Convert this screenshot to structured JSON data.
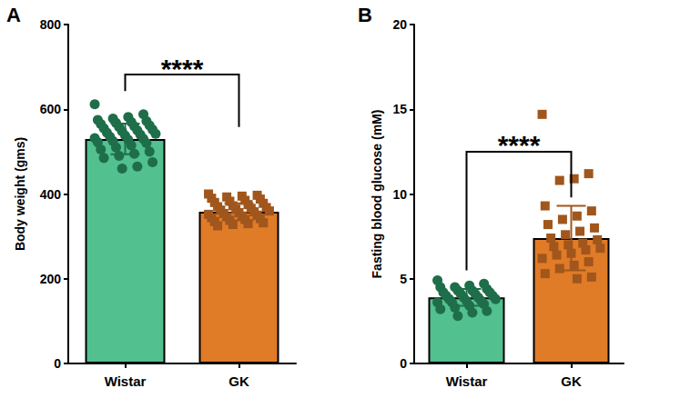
{
  "chart_data": [
    {
      "type": "bar",
      "title": "A",
      "categories": [
        "Wistar",
        "GK"
      ],
      "values": [
        530,
        358
      ],
      "errors": [
        36,
        20
      ],
      "colors": [
        "#52c08f",
        "#e07b27"
      ],
      "ylabel": "Body weight (gms)",
      "ylim": [
        0,
        800
      ],
      "yticks": [
        0,
        200,
        400,
        600,
        800
      ],
      "grid": false,
      "points": [
        {
          "category": "Wistar",
          "color": "#1f6e4a",
          "marker": "circle",
          "values": [
            612,
            588,
            582,
            578,
            575,
            572,
            570,
            568,
            565,
            562,
            560,
            558,
            555,
            552,
            550,
            548,
            545,
            542,
            540,
            538,
            535,
            532,
            530,
            528,
            525,
            522,
            520,
            515,
            510,
            505,
            500,
            495,
            490,
            485,
            475,
            465,
            460
          ]
        },
        {
          "category": "GK",
          "color": "#a0561c",
          "marker": "square",
          "values": [
            400,
            397,
            395,
            393,
            390,
            388,
            385,
            383,
            380,
            378,
            375,
            372,
            370,
            368,
            366,
            364,
            362,
            360,
            358,
            356,
            354,
            352,
            350,
            348,
            346,
            344,
            342,
            340,
            338,
            335,
            332,
            330,
            328,
            325
          ]
        }
      ],
      "annotations": [
        {
          "text": "****",
          "between": [
            "Wistar",
            "GK"
          ],
          "y": 682,
          "left_end": 643,
          "right_end": 558
        }
      ]
    },
    {
      "type": "bar",
      "title": "B",
      "categories": [
        "Wistar",
        "GK"
      ],
      "values": [
        3.9,
        7.4
      ],
      "errors": [
        0.5,
        1.9
      ],
      "colors": [
        "#52c08f",
        "#e07b27"
      ],
      "ylabel": "Fasting blood glucose (mM)",
      "ylim": [
        0,
        20
      ],
      "yticks": [
        0,
        5,
        10,
        15,
        20
      ],
      "grid": false,
      "points": [
        {
          "category": "Wistar",
          "color": "#1f6e4a",
          "marker": "circle",
          "values": [
            4.9,
            4.7,
            4.6,
            4.5,
            4.5,
            4.4,
            4.3,
            4.3,
            4.2,
            4.2,
            4.1,
            4.1,
            4.0,
            4.0,
            3.9,
            3.9,
            3.8,
            3.8,
            3.7,
            3.7,
            3.6,
            3.6,
            3.5,
            3.4,
            3.3,
            3.2,
            3.1,
            3.0,
            2.8
          ]
        },
        {
          "category": "GK",
          "color": "#a0561c",
          "marker": "square",
          "values": [
            14.7,
            11.2,
            10.9,
            10.8,
            9.3,
            9.0,
            8.7,
            8.5,
            8.2,
            8.0,
            7.8,
            7.6,
            7.4,
            7.3,
            7.1,
            7.0,
            6.9,
            6.8,
            6.7,
            6.5,
            6.4,
            6.2,
            6.0,
            5.8,
            5.6,
            5.3,
            5.1,
            5.0
          ]
        }
      ],
      "annotations": [
        {
          "text": "****",
          "between": [
            "Wistar",
            "GK"
          ],
          "y": 12.5,
          "left_end": 5.5,
          "right_end": 9.8
        }
      ]
    }
  ]
}
